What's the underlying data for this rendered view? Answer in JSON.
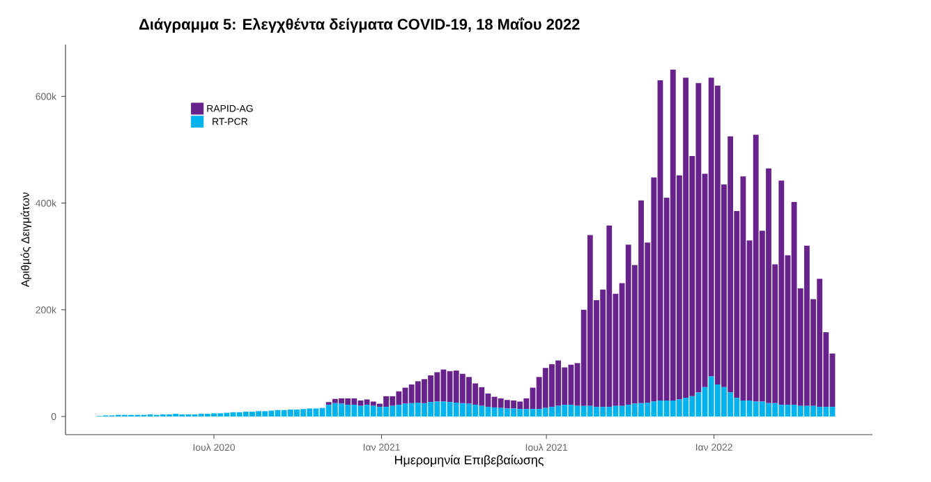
{
  "chart_data": {
    "type": "bar",
    "stacked": true,
    "title": "Διάγραμμα 5: Ελεγχθέντα δείγματα COVID-19, 18 Μαΐου 2022",
    "xlabel": "Ημερομηνία Επιβεβαίωσης",
    "ylabel": "Αριθμός Δειγμάτων",
    "legend": "top left",
    "xlim": [
      "2020-01-20",
      "2022-06-24"
    ],
    "ylim": [
      -34000,
      697000
    ],
    "xticks": [
      {
        "value": "2020-07-01",
        "label": "Ιουλ 2020"
      },
      {
        "value": "2021-01-01",
        "label": "Ιαν 2021"
      },
      {
        "value": "2021-07-01",
        "label": "Ιουλ 2021"
      },
      {
        "value": "2022-01-01",
        "label": "Ιαν 2022"
      }
    ],
    "yticks": [
      {
        "value": 0,
        "label": "0"
      },
      {
        "value": 200000,
        "label": "200k"
      },
      {
        "value": 400000,
        "label": "400k"
      },
      {
        "value": 600000,
        "label": "600k"
      }
    ],
    "x": [
      "2020-02-26",
      "2020-03-04",
      "2020-03-11",
      "2020-03-18",
      "2020-03-25",
      "2020-04-01",
      "2020-04-08",
      "2020-04-15",
      "2020-04-22",
      "2020-04-29",
      "2020-05-06",
      "2020-05-13",
      "2020-05-20",
      "2020-05-27",
      "2020-06-03",
      "2020-06-10",
      "2020-06-17",
      "2020-06-24",
      "2020-07-01",
      "2020-07-08",
      "2020-07-15",
      "2020-07-22",
      "2020-07-29",
      "2020-08-05",
      "2020-08-12",
      "2020-08-19",
      "2020-08-26",
      "2020-09-02",
      "2020-09-09",
      "2020-09-16",
      "2020-09-23",
      "2020-09-30",
      "2020-10-07",
      "2020-10-14",
      "2020-10-21",
      "2020-10-28",
      "2020-11-04",
      "2020-11-11",
      "2020-11-18",
      "2020-11-25",
      "2020-12-02",
      "2020-12-09",
      "2020-12-16",
      "2020-12-23",
      "2020-12-30",
      "2021-01-06",
      "2021-01-13",
      "2021-01-20",
      "2021-01-27",
      "2021-02-03",
      "2021-02-10",
      "2021-02-17",
      "2021-02-24",
      "2021-03-03",
      "2021-03-10",
      "2021-03-17",
      "2021-03-24",
      "2021-03-31",
      "2021-04-07",
      "2021-04-14",
      "2021-04-21",
      "2021-04-28",
      "2021-05-05",
      "2021-05-12",
      "2021-05-19",
      "2021-05-26",
      "2021-06-02",
      "2021-06-09",
      "2021-06-16",
      "2021-06-23",
      "2021-06-30",
      "2021-07-07",
      "2021-07-14",
      "2021-07-21",
      "2021-07-28",
      "2021-08-04",
      "2021-08-11",
      "2021-08-18",
      "2021-08-25",
      "2021-09-01",
      "2021-09-08",
      "2021-09-15",
      "2021-09-22",
      "2021-09-29",
      "2021-10-06",
      "2021-10-13",
      "2021-10-20",
      "2021-10-27",
      "2021-11-03",
      "2021-11-10",
      "2021-11-17",
      "2021-11-24",
      "2021-12-01",
      "2021-12-08",
      "2021-12-15",
      "2021-12-22",
      "2021-12-29",
      "2022-01-05",
      "2022-01-12",
      "2022-01-19",
      "2022-01-26",
      "2022-02-02",
      "2022-02-09",
      "2022-02-16",
      "2022-02-23",
      "2022-03-02",
      "2022-03-09",
      "2022-03-16",
      "2022-03-23",
      "2022-03-30",
      "2022-04-06",
      "2022-04-13",
      "2022-04-20",
      "2022-04-27",
      "2022-05-04",
      "2022-05-11"
    ],
    "series": [
      {
        "name": "RT-PCR",
        "color": "#00b2ee",
        "values": [
          1000,
          2000,
          2000,
          3000,
          3000,
          3000,
          3000,
          3000,
          4000,
          3000,
          4000,
          4000,
          5000,
          4000,
          4000,
          4000,
          5000,
          5000,
          6000,
          6000,
          7000,
          8000,
          8000,
          9000,
          9000,
          10000,
          10000,
          11000,
          12000,
          12000,
          13000,
          13000,
          14000,
          15000,
          15000,
          16000,
          22000,
          25000,
          24000,
          22000,
          22000,
          20000,
          22000,
          20000,
          18000,
          18000,
          20000,
          22000,
          24000,
          25000,
          26000,
          25000,
          27000,
          28000,
          28000,
          27000,
          26000,
          25000,
          24000,
          22000,
          20000,
          18000,
          17000,
          16000,
          15000,
          15000,
          14000,
          14000,
          14000,
          14000,
          16000,
          18000,
          20000,
          22000,
          22000,
          20000,
          20000,
          20000,
          18000,
          18000,
          18000,
          20000,
          20000,
          22000,
          24000,
          25000,
          26000,
          28000,
          30000,
          30000,
          30000,
          32000,
          35000,
          38000,
          45000,
          55000,
          75000,
          60000,
          55000,
          45000,
          35000,
          30000,
          30000,
          28000,
          28000,
          25000,
          25000,
          22000,
          22000,
          22000,
          20000,
          20000,
          20000,
          18000,
          18000,
          18000
        ]
      },
      {
        "name": "RAPID-AG",
        "color": "#68228b",
        "values": [
          0,
          0,
          0,
          0,
          0,
          0,
          0,
          0,
          0,
          0,
          0,
          0,
          0,
          0,
          0,
          0,
          0,
          0,
          0,
          0,
          0,
          0,
          0,
          0,
          0,
          0,
          0,
          0,
          0,
          0,
          0,
          0,
          0,
          0,
          0,
          0,
          5000,
          8000,
          10000,
          12000,
          12000,
          10000,
          10000,
          8000,
          6000,
          20000,
          18000,
          25000,
          30000,
          35000,
          40000,
          45000,
          50000,
          55000,
          60000,
          58000,
          60000,
          55000,
          50000,
          40000,
          35000,
          25000,
          20000,
          18000,
          16000,
          15000,
          14000,
          20000,
          40000,
          60000,
          75000,
          80000,
          85000,
          70000,
          75000,
          80000,
          180000,
          320000,
          200000,
          220000,
          340000,
          210000,
          230000,
          300000,
          260000,
          380000,
          300000,
          420000,
          600000,
          380000,
          620000,
          420000,
          600000,
          450000,
          580000,
          400000,
          560000,
          560000,
          380000,
          480000,
          350000,
          420000,
          300000,
          500000,
          320000,
          440000,
          260000,
          420000,
          280000,
          380000,
          220000,
          300000,
          200000,
          240000,
          140000,
          100000
        ]
      }
    ]
  }
}
